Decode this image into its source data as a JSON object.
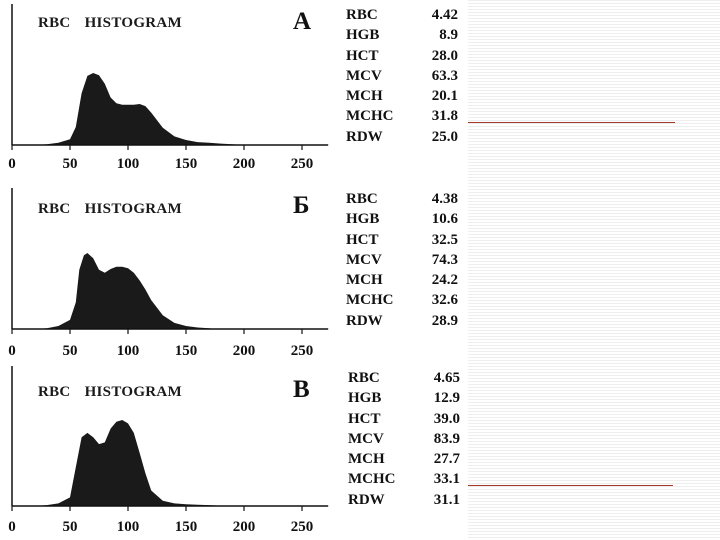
{
  "panels": [
    {
      "title_a": "RBC",
      "title_b": "HISTOGRAM",
      "letter": "А",
      "params": [
        {
          "name": "RBC",
          "value": "4.42"
        },
        {
          "name": "HGB",
          "value": "8.9"
        },
        {
          "name": "HCT",
          "value": "28.0"
        },
        {
          "name": "MCV",
          "value": "63.3"
        },
        {
          "name": "MCH",
          "value": "20.1"
        },
        {
          "name": "MCHC",
          "value": "31.8"
        },
        {
          "name": "RDW",
          "value": "25.0"
        }
      ]
    },
    {
      "title_a": "RBC",
      "title_b": "HISTOGRAM",
      "letter": "Б",
      "params": [
        {
          "name": "RBC",
          "value": "4.38"
        },
        {
          "name": "HGB",
          "value": "10.6"
        },
        {
          "name": "HCT",
          "value": "32.5"
        },
        {
          "name": "MCV",
          "value": "74.3"
        },
        {
          "name": "MCH",
          "value": "24.2"
        },
        {
          "name": "MCHC",
          "value": "32.6"
        },
        {
          "name": "RDW",
          "value": "28.9"
        }
      ]
    },
    {
      "title_a": "RBC",
      "title_b": "HISTOGRAM",
      "letter": "В",
      "params": [
        {
          "name": "RBC",
          "value": "4.65"
        },
        {
          "name": "HGB",
          "value": "12.9"
        },
        {
          "name": "HCT",
          "value": "39.0"
        },
        {
          "name": "MCV",
          "value": "83.9"
        },
        {
          "name": "MCH",
          "value": "27.7"
        },
        {
          "name": "MCHC",
          "value": "33.1"
        },
        {
          "name": "RDW",
          "value": "31.1"
        }
      ]
    }
  ],
  "colors": {
    "fill": "#1a1a1a",
    "accent_line": "#a03a2a",
    "stripes": "#eeeeee"
  },
  "chart_data": [
    {
      "type": "area",
      "title": "RBC HISTOGRAM",
      "xlabel": "",
      "ylabel": "",
      "xlim": [
        0,
        270
      ],
      "ylim": [
        0,
        1
      ],
      "xticks": [
        "0",
        "50",
        "100",
        "150",
        "200",
        "250"
      ],
      "x": [
        20,
        30,
        40,
        50,
        55,
        60,
        65,
        70,
        75,
        80,
        85,
        90,
        95,
        100,
        105,
        110,
        115,
        120,
        130,
        140,
        150,
        160,
        170,
        180,
        190,
        200
      ],
      "values": [
        0,
        0.01,
        0.03,
        0.08,
        0.25,
        0.72,
        0.96,
        1.0,
        0.97,
        0.85,
        0.66,
        0.58,
        0.56,
        0.56,
        0.56,
        0.57,
        0.54,
        0.45,
        0.24,
        0.12,
        0.07,
        0.04,
        0.03,
        0.02,
        0.01,
        0
      ]
    },
    {
      "type": "area",
      "title": "RBC HISTOGRAM",
      "xlabel": "",
      "ylabel": "",
      "xlim": [
        0,
        270
      ],
      "ylim": [
        0,
        1
      ],
      "xticks": [
        "0",
        "50",
        "100",
        "150",
        "200",
        "250"
      ],
      "x": [
        20,
        30,
        40,
        50,
        55,
        58,
        62,
        65,
        70,
        75,
        80,
        85,
        90,
        95,
        100,
        105,
        110,
        115,
        120,
        130,
        140,
        150,
        160,
        170,
        175
      ],
      "values": [
        0,
        0.01,
        0.04,
        0.12,
        0.35,
        0.78,
        0.97,
        1.0,
        0.93,
        0.78,
        0.74,
        0.79,
        0.82,
        0.82,
        0.8,
        0.74,
        0.64,
        0.52,
        0.38,
        0.18,
        0.08,
        0.04,
        0.02,
        0.01,
        0
      ]
    },
    {
      "type": "area",
      "title": "RBC HISTOGRAM",
      "xlabel": "",
      "ylabel": "",
      "xlim": [
        0,
        270
      ],
      "ylim": [
        0,
        1
      ],
      "xticks": [
        "0",
        "50",
        "100",
        "150",
        "200",
        "250"
      ],
      "x": [
        20,
        30,
        40,
        50,
        55,
        60,
        65,
        70,
        75,
        80,
        85,
        90,
        95,
        100,
        105,
        110,
        115,
        120,
        130,
        140,
        150,
        160,
        170,
        180,
        190
      ],
      "values": [
        0,
        0.01,
        0.03,
        0.1,
        0.45,
        0.8,
        0.85,
        0.8,
        0.72,
        0.74,
        0.9,
        0.98,
        1.0,
        0.96,
        0.85,
        0.62,
        0.38,
        0.18,
        0.06,
        0.03,
        0.02,
        0.015,
        0.01,
        0.005,
        0
      ]
    }
  ]
}
